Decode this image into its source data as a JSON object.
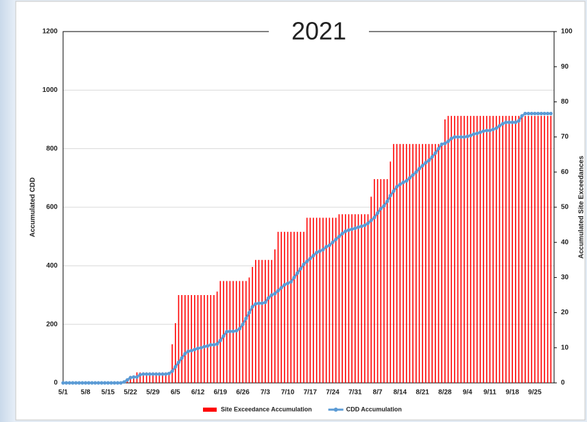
{
  "chart_data": {
    "type": "combo",
    "title": "2021",
    "y_label": "Accumulated CDD",
    "y2_label": "Accumulated Site Exceedances",
    "categories": [
      "5/1",
      null,
      null,
      null,
      null,
      null,
      null,
      "5/8",
      null,
      null,
      null,
      null,
      null,
      null,
      "5/15",
      null,
      null,
      null,
      null,
      null,
      null,
      "5/22",
      null,
      null,
      null,
      null,
      null,
      null,
      "5/29",
      null,
      null,
      null,
      null,
      null,
      null,
      "6/5",
      null,
      null,
      null,
      null,
      null,
      null,
      "6/12",
      null,
      null,
      null,
      null,
      null,
      null,
      "6/19",
      null,
      null,
      null,
      null,
      null,
      null,
      "6/26",
      null,
      null,
      null,
      null,
      null,
      null,
      "7/3",
      null,
      null,
      null,
      null,
      null,
      null,
      "7/10",
      null,
      null,
      null,
      null,
      null,
      null,
      "7/17",
      null,
      null,
      null,
      null,
      null,
      null,
      "7/24",
      null,
      null,
      null,
      null,
      null,
      null,
      "7/31",
      null,
      null,
      null,
      null,
      null,
      null,
      "8/7",
      null,
      null,
      null,
      null,
      null,
      null,
      "8/14",
      null,
      null,
      null,
      null,
      null,
      null,
      "8/21",
      null,
      null,
      null,
      null,
      null,
      null,
      "8/28",
      null,
      null,
      null,
      null,
      null,
      null,
      "9/4",
      null,
      null,
      null,
      null,
      null,
      null,
      "9/11",
      null,
      null,
      null,
      null,
      null,
      null,
      "9/18",
      null,
      null,
      null,
      null,
      null,
      null,
      "9/25",
      null,
      null,
      null,
      null,
      null
    ],
    "series": [
      {
        "name": "Site Exceedance Accumulation",
        "type": "bar",
        "axis": "y2",
        "color": "#ff0000",
        "values": [
          0,
          0,
          0,
          0,
          0,
          0,
          0,
          0,
          0,
          0,
          0,
          0,
          0,
          0,
          0,
          0,
          0,
          0,
          0,
          0,
          1,
          2,
          2,
          3,
          3,
          3,
          3,
          3,
          3,
          3,
          3,
          3,
          3,
          3,
          11,
          17,
          25,
          25,
          25,
          25,
          25,
          25,
          25,
          25,
          25,
          25,
          25,
          25,
          26,
          29,
          29,
          29,
          29,
          29,
          29,
          29,
          29,
          29,
          30,
          33,
          35,
          35,
          35,
          35,
          35,
          35,
          38,
          43,
          43,
          43,
          43,
          43,
          43,
          43,
          43,
          43,
          47,
          47,
          47,
          47,
          47,
          47,
          47,
          47,
          47,
          47,
          48,
          48,
          48,
          48,
          48,
          48,
          48,
          48,
          48,
          48,
          53,
          58,
          58,
          58,
          58,
          58,
          63,
          68,
          68,
          68,
          68,
          68,
          68,
          68,
          68,
          68,
          68,
          68,
          68,
          68,
          68,
          68,
          68,
          75,
          76,
          76,
          76,
          76,
          76,
          76,
          76,
          76,
          76,
          76,
          76,
          76,
          76,
          76,
          76,
          76,
          76,
          76,
          76,
          76,
          76,
          76,
          76,
          76,
          76,
          76,
          76,
          76,
          76,
          76,
          76,
          76,
          76
        ]
      },
      {
        "name": "CDD Accumulation",
        "type": "line",
        "color": "#5b9bd5",
        "values": [
          0,
          0,
          0,
          0,
          0,
          0,
          0,
          0,
          0,
          0,
          0,
          0,
          0,
          0,
          0,
          0,
          0,
          0,
          0,
          3,
          10,
          18,
          20,
          20,
          28,
          30,
          30,
          30,
          30,
          30,
          30,
          30,
          30,
          32,
          40,
          55,
          70,
          85,
          100,
          108,
          110,
          114,
          118,
          120,
          124,
          126,
          130,
          130,
          133,
          145,
          160,
          175,
          176,
          176,
          178,
          185,
          200,
          220,
          240,
          260,
          270,
          272,
          272,
          275,
          290,
          300,
          305,
          315,
          325,
          335,
          340,
          345,
          360,
          375,
          390,
          405,
          415,
          425,
          435,
          445,
          450,
          455,
          465,
          470,
          480,
          490,
          500,
          510,
          518,
          522,
          525,
          528,
          532,
          535,
          538,
          545,
          555,
          565,
          580,
          595,
          605,
          620,
          640,
          655,
          670,
          678,
          685,
          690,
          700,
          710,
          720,
          732,
          742,
          752,
          760,
          772,
          785,
          800,
          815,
          818,
          825,
          835,
          840,
          840,
          840,
          840,
          842,
          845,
          850,
          852,
          856,
          860,
          862,
          862,
          866,
          870,
          878,
          885,
          890,
          890,
          890,
          890,
          895,
          912,
          920,
          920,
          920,
          920,
          920,
          920,
          920,
          920,
          920
        ]
      }
    ],
    "ylim": [
      0,
      1200
    ],
    "yticks": [
      0,
      200,
      400,
      600,
      800,
      1000,
      1200
    ],
    "y2lim": [
      0,
      100
    ],
    "y2ticks": [
      0,
      10,
      20,
      30,
      40,
      50,
      60,
      70,
      80,
      90,
      100
    ],
    "grid": true,
    "legend": "bottom"
  }
}
